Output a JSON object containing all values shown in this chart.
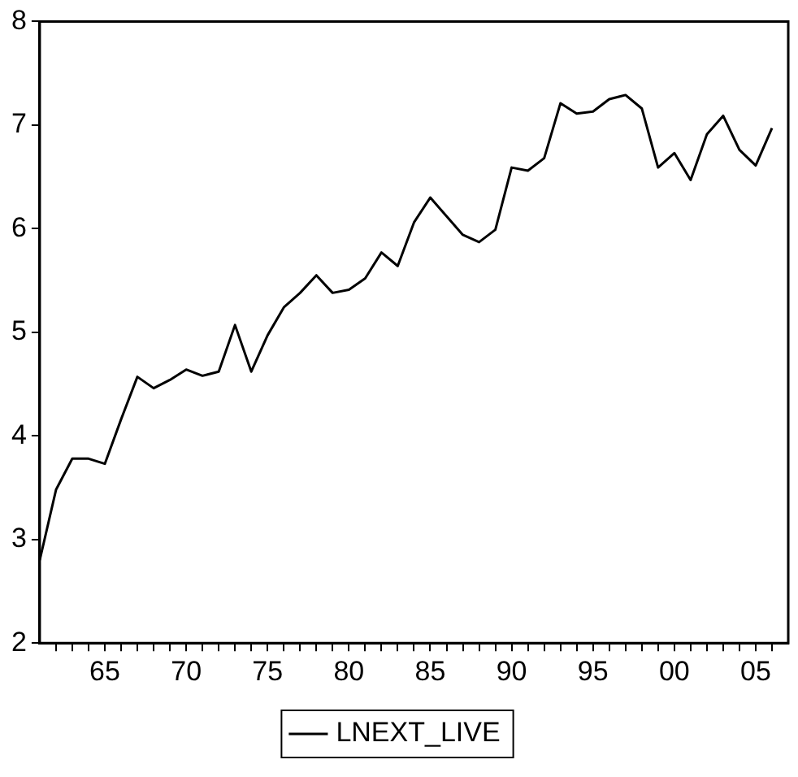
{
  "chart_data": {
    "type": "line",
    "x": [
      1961,
      1962,
      1963,
      1964,
      1965,
      1966,
      1967,
      1968,
      1969,
      1970,
      1971,
      1972,
      1973,
      1974,
      1975,
      1976,
      1977,
      1978,
      1979,
      1980,
      1981,
      1982,
      1983,
      1984,
      1985,
      1986,
      1987,
      1988,
      1989,
      1990,
      1991,
      1992,
      1993,
      1994,
      1995,
      1996,
      1997,
      1998,
      1999,
      2000,
      2001,
      2002,
      2003,
      2004,
      2005,
      2006
    ],
    "series": [
      {
        "name": "LNEXT_LIVE",
        "color": "#000000",
        "values": [
          2.8,
          3.48,
          3.78,
          3.78,
          3.73,
          4.16,
          4.57,
          4.46,
          4.54,
          4.64,
          4.58,
          4.62,
          5.07,
          4.62,
          4.97,
          5.24,
          5.38,
          5.55,
          5.38,
          5.41,
          5.52,
          5.77,
          5.64,
          6.06,
          6.3,
          6.12,
          5.94,
          5.87,
          5.99,
          6.59,
          6.56,
          6.68,
          7.21,
          7.11,
          7.13,
          7.25,
          7.29,
          7.16,
          6.59,
          6.73,
          6.47,
          6.91,
          7.09,
          6.76,
          6.61,
          6.97
        ]
      }
    ],
    "xlim": [
      1961,
      2007
    ],
    "xticks": [
      {
        "value": 1962,
        "label": null
      },
      {
        "value": 1963,
        "label": null
      },
      {
        "value": 1964,
        "label": null
      },
      {
        "value": 1965,
        "label": "65"
      },
      {
        "value": 1966,
        "label": null
      },
      {
        "value": 1967,
        "label": null
      },
      {
        "value": 1968,
        "label": null
      },
      {
        "value": 1969,
        "label": null
      },
      {
        "value": 1970,
        "label": "70"
      },
      {
        "value": 1971,
        "label": null
      },
      {
        "value": 1972,
        "label": null
      },
      {
        "value": 1973,
        "label": null
      },
      {
        "value": 1974,
        "label": null
      },
      {
        "value": 1975,
        "label": "75"
      },
      {
        "value": 1976,
        "label": null
      },
      {
        "value": 1977,
        "label": null
      },
      {
        "value": 1978,
        "label": null
      },
      {
        "value": 1979,
        "label": null
      },
      {
        "value": 1980,
        "label": "80"
      },
      {
        "value": 1981,
        "label": null
      },
      {
        "value": 1982,
        "label": null
      },
      {
        "value": 1983,
        "label": null
      },
      {
        "value": 1984,
        "label": null
      },
      {
        "value": 1985,
        "label": "85"
      },
      {
        "value": 1986,
        "label": null
      },
      {
        "value": 1987,
        "label": null
      },
      {
        "value": 1988,
        "label": null
      },
      {
        "value": 1989,
        "label": null
      },
      {
        "value": 1990,
        "label": "90"
      },
      {
        "value": 1991,
        "label": null
      },
      {
        "value": 1992,
        "label": null
      },
      {
        "value": 1993,
        "label": null
      },
      {
        "value": 1994,
        "label": null
      },
      {
        "value": 1995,
        "label": "95"
      },
      {
        "value": 1996,
        "label": null
      },
      {
        "value": 1997,
        "label": null
      },
      {
        "value": 1998,
        "label": null
      },
      {
        "value": 1999,
        "label": null
      },
      {
        "value": 2000,
        "label": "00"
      },
      {
        "value": 2001,
        "label": null
      },
      {
        "value": 2002,
        "label": null
      },
      {
        "value": 2003,
        "label": null
      },
      {
        "value": 2004,
        "label": null
      },
      {
        "value": 2005,
        "label": "05"
      },
      {
        "value": 2006,
        "label": null
      }
    ],
    "ylim": [
      2,
      8
    ],
    "yticks": [
      2,
      3,
      4,
      5,
      6,
      7,
      8
    ],
    "grid": false,
    "legend": "bottom",
    "marker": "none",
    "line_style": "solid"
  }
}
